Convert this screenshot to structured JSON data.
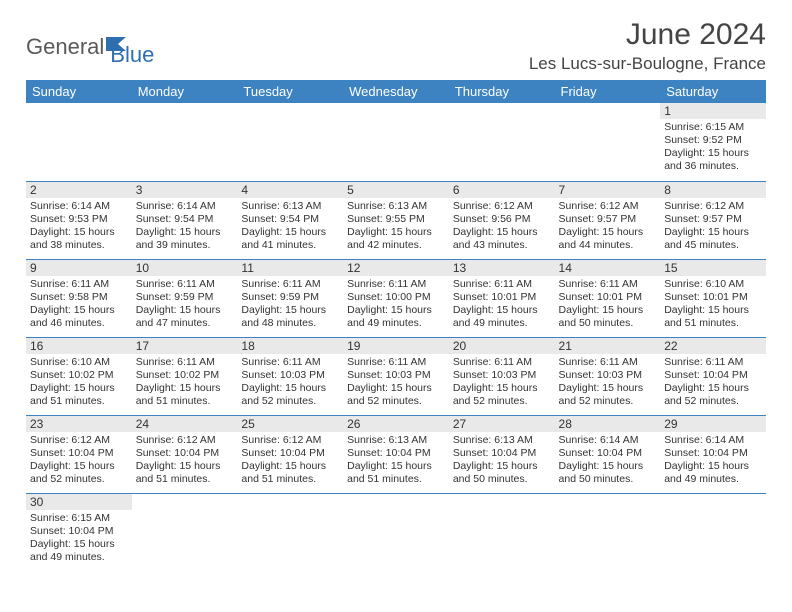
{
  "brand": {
    "part1": "General",
    "part2": "Blue"
  },
  "title": "June 2024",
  "location": "Les Lucs-sur-Boulogne, France",
  "colors": {
    "header_bg": "#3d83c2",
    "header_text": "#ffffff",
    "daynum_bg": "#e9e9e9",
    "border": "#3d83c2",
    "brand_gray": "#5a5a5a",
    "brand_blue": "#2f6fb0"
  },
  "day_labels": [
    "Sunday",
    "Monday",
    "Tuesday",
    "Wednesday",
    "Thursday",
    "Friday",
    "Saturday"
  ],
  "weeks": [
    [
      {
        "n": "",
        "sr": "",
        "ss": "",
        "dl": ""
      },
      {
        "n": "",
        "sr": "",
        "ss": "",
        "dl": ""
      },
      {
        "n": "",
        "sr": "",
        "ss": "",
        "dl": ""
      },
      {
        "n": "",
        "sr": "",
        "ss": "",
        "dl": ""
      },
      {
        "n": "",
        "sr": "",
        "ss": "",
        "dl": ""
      },
      {
        "n": "",
        "sr": "",
        "ss": "",
        "dl": ""
      },
      {
        "n": "1",
        "sr": "Sunrise: 6:15 AM",
        "ss": "Sunset: 9:52 PM",
        "dl": "Daylight: 15 hours and 36 minutes."
      }
    ],
    [
      {
        "n": "2",
        "sr": "Sunrise: 6:14 AM",
        "ss": "Sunset: 9:53 PM",
        "dl": "Daylight: 15 hours and 38 minutes."
      },
      {
        "n": "3",
        "sr": "Sunrise: 6:14 AM",
        "ss": "Sunset: 9:54 PM",
        "dl": "Daylight: 15 hours and 39 minutes."
      },
      {
        "n": "4",
        "sr": "Sunrise: 6:13 AM",
        "ss": "Sunset: 9:54 PM",
        "dl": "Daylight: 15 hours and 41 minutes."
      },
      {
        "n": "5",
        "sr": "Sunrise: 6:13 AM",
        "ss": "Sunset: 9:55 PM",
        "dl": "Daylight: 15 hours and 42 minutes."
      },
      {
        "n": "6",
        "sr": "Sunrise: 6:12 AM",
        "ss": "Sunset: 9:56 PM",
        "dl": "Daylight: 15 hours and 43 minutes."
      },
      {
        "n": "7",
        "sr": "Sunrise: 6:12 AM",
        "ss": "Sunset: 9:57 PM",
        "dl": "Daylight: 15 hours and 44 minutes."
      },
      {
        "n": "8",
        "sr": "Sunrise: 6:12 AM",
        "ss": "Sunset: 9:57 PM",
        "dl": "Daylight: 15 hours and 45 minutes."
      }
    ],
    [
      {
        "n": "9",
        "sr": "Sunrise: 6:11 AM",
        "ss": "Sunset: 9:58 PM",
        "dl": "Daylight: 15 hours and 46 minutes."
      },
      {
        "n": "10",
        "sr": "Sunrise: 6:11 AM",
        "ss": "Sunset: 9:59 PM",
        "dl": "Daylight: 15 hours and 47 minutes."
      },
      {
        "n": "11",
        "sr": "Sunrise: 6:11 AM",
        "ss": "Sunset: 9:59 PM",
        "dl": "Daylight: 15 hours and 48 minutes."
      },
      {
        "n": "12",
        "sr": "Sunrise: 6:11 AM",
        "ss": "Sunset: 10:00 PM",
        "dl": "Daylight: 15 hours and 49 minutes."
      },
      {
        "n": "13",
        "sr": "Sunrise: 6:11 AM",
        "ss": "Sunset: 10:01 PM",
        "dl": "Daylight: 15 hours and 49 minutes."
      },
      {
        "n": "14",
        "sr": "Sunrise: 6:11 AM",
        "ss": "Sunset: 10:01 PM",
        "dl": "Daylight: 15 hours and 50 minutes."
      },
      {
        "n": "15",
        "sr": "Sunrise: 6:10 AM",
        "ss": "Sunset: 10:01 PM",
        "dl": "Daylight: 15 hours and 51 minutes."
      }
    ],
    [
      {
        "n": "16",
        "sr": "Sunrise: 6:10 AM",
        "ss": "Sunset: 10:02 PM",
        "dl": "Daylight: 15 hours and 51 minutes."
      },
      {
        "n": "17",
        "sr": "Sunrise: 6:11 AM",
        "ss": "Sunset: 10:02 PM",
        "dl": "Daylight: 15 hours and 51 minutes."
      },
      {
        "n": "18",
        "sr": "Sunrise: 6:11 AM",
        "ss": "Sunset: 10:03 PM",
        "dl": "Daylight: 15 hours and 52 minutes."
      },
      {
        "n": "19",
        "sr": "Sunrise: 6:11 AM",
        "ss": "Sunset: 10:03 PM",
        "dl": "Daylight: 15 hours and 52 minutes."
      },
      {
        "n": "20",
        "sr": "Sunrise: 6:11 AM",
        "ss": "Sunset: 10:03 PM",
        "dl": "Daylight: 15 hours and 52 minutes."
      },
      {
        "n": "21",
        "sr": "Sunrise: 6:11 AM",
        "ss": "Sunset: 10:03 PM",
        "dl": "Daylight: 15 hours and 52 minutes."
      },
      {
        "n": "22",
        "sr": "Sunrise: 6:11 AM",
        "ss": "Sunset: 10:04 PM",
        "dl": "Daylight: 15 hours and 52 minutes."
      }
    ],
    [
      {
        "n": "23",
        "sr": "Sunrise: 6:12 AM",
        "ss": "Sunset: 10:04 PM",
        "dl": "Daylight: 15 hours and 52 minutes."
      },
      {
        "n": "24",
        "sr": "Sunrise: 6:12 AM",
        "ss": "Sunset: 10:04 PM",
        "dl": "Daylight: 15 hours and 51 minutes."
      },
      {
        "n": "25",
        "sr": "Sunrise: 6:12 AM",
        "ss": "Sunset: 10:04 PM",
        "dl": "Daylight: 15 hours and 51 minutes."
      },
      {
        "n": "26",
        "sr": "Sunrise: 6:13 AM",
        "ss": "Sunset: 10:04 PM",
        "dl": "Daylight: 15 hours and 51 minutes."
      },
      {
        "n": "27",
        "sr": "Sunrise: 6:13 AM",
        "ss": "Sunset: 10:04 PM",
        "dl": "Daylight: 15 hours and 50 minutes."
      },
      {
        "n": "28",
        "sr": "Sunrise: 6:14 AM",
        "ss": "Sunset: 10:04 PM",
        "dl": "Daylight: 15 hours and 50 minutes."
      },
      {
        "n": "29",
        "sr": "Sunrise: 6:14 AM",
        "ss": "Sunset: 10:04 PM",
        "dl": "Daylight: 15 hours and 49 minutes."
      }
    ],
    [
      {
        "n": "30",
        "sr": "Sunrise: 6:15 AM",
        "ss": "Sunset: 10:04 PM",
        "dl": "Daylight: 15 hours and 49 minutes."
      },
      {
        "n": "",
        "sr": "",
        "ss": "",
        "dl": ""
      },
      {
        "n": "",
        "sr": "",
        "ss": "",
        "dl": ""
      },
      {
        "n": "",
        "sr": "",
        "ss": "",
        "dl": ""
      },
      {
        "n": "",
        "sr": "",
        "ss": "",
        "dl": ""
      },
      {
        "n": "",
        "sr": "",
        "ss": "",
        "dl": ""
      },
      {
        "n": "",
        "sr": "",
        "ss": "",
        "dl": ""
      }
    ]
  ]
}
